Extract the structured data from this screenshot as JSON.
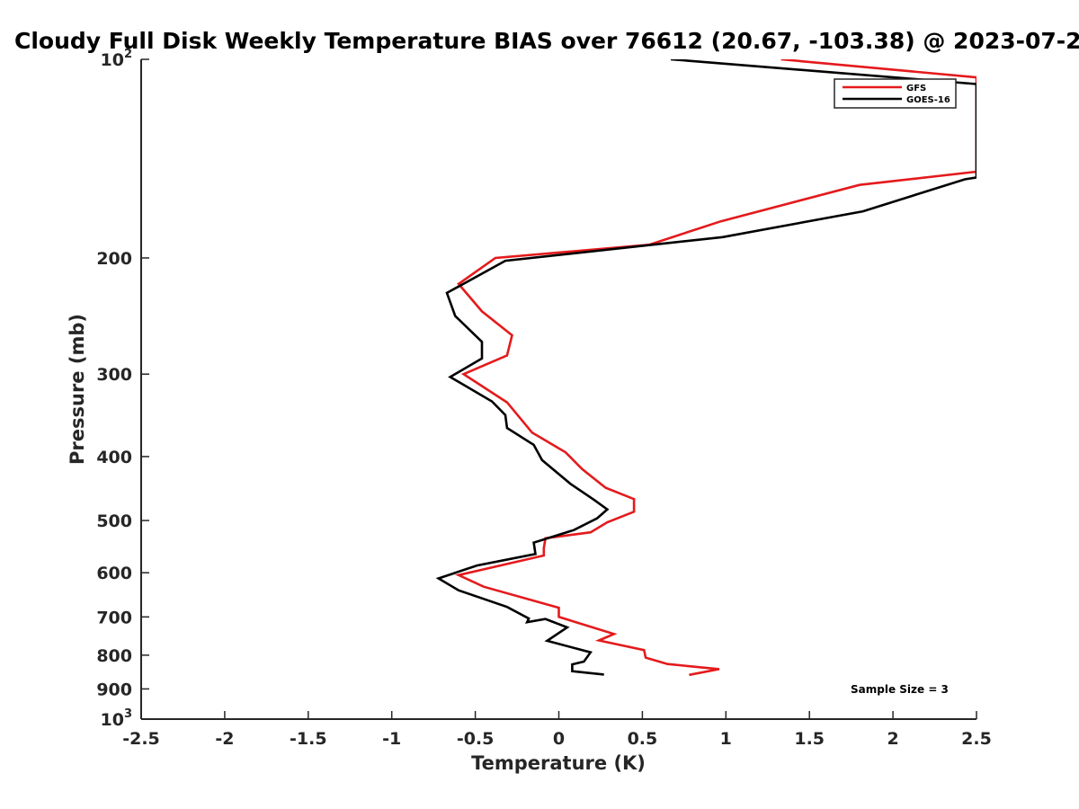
{
  "chart_data": {
    "type": "line",
    "title": "Cloudy Full Disk Weekly Temperature BIAS over 76612 (20.67, -103.38) @ 2023-07-2",
    "xlabel": "Temperature (K)",
    "ylabel": "Pressure (mb)",
    "xlim": [
      -2.5,
      2.5
    ],
    "ylim": [
      1000,
      100
    ],
    "y_scale": "log",
    "y_reversed": true,
    "grid": false,
    "legend_position": "top-right",
    "x_ticks": [
      "-2.5",
      "-2",
      "-1.5",
      "-1",
      "-0.5",
      "0",
      "0.5",
      "1",
      "1.5",
      "2",
      "2.5"
    ],
    "y_ticks": [
      {
        "base": "10",
        "exp": "2"
      },
      {
        "base": "200",
        "exp": ""
      },
      {
        "base": "300",
        "exp": ""
      },
      {
        "base": "400",
        "exp": ""
      },
      {
        "base": "500",
        "exp": ""
      },
      {
        "base": "600",
        "exp": ""
      },
      {
        "base": "700",
        "exp": ""
      },
      {
        "base": "800",
        "exp": ""
      },
      {
        "base": "900",
        "exp": ""
      },
      {
        "base": "10",
        "exp": "3"
      }
    ],
    "annotation": "Sample Size = 3",
    "series": [
      {
        "name": "GFS",
        "color": "#e41a1c",
        "points": [
          [
            1.33,
            100
          ],
          [
            2.5,
            106.5
          ],
          [
            2.5,
            148
          ],
          [
            1.8,
            155
          ],
          [
            0.97,
            176
          ],
          [
            0.54,
            191
          ],
          [
            -0.38,
            200
          ],
          [
            -0.6,
            219
          ],
          [
            -0.46,
            241
          ],
          [
            -0.28,
            262
          ],
          [
            -0.31,
            281
          ],
          [
            -0.57,
            300
          ],
          [
            -0.31,
            331
          ],
          [
            -0.16,
            368
          ],
          [
            0.04,
            394
          ],
          [
            0.14,
            418
          ],
          [
            0.28,
            446
          ],
          [
            0.45,
            464
          ],
          [
            0.45,
            485
          ],
          [
            0.29,
            503
          ],
          [
            0.19,
            521
          ],
          [
            -0.08,
            532
          ],
          [
            -0.09,
            551
          ],
          [
            -0.09,
            565
          ],
          [
            -0.6,
            605
          ],
          [
            -0.45,
            630
          ],
          [
            0.0,
            678
          ],
          [
            0.0,
            700
          ],
          [
            0.33,
            743
          ],
          [
            0.24,
            760
          ],
          [
            0.51,
            786
          ],
          [
            0.52,
            807
          ],
          [
            0.65,
            825
          ],
          [
            0.96,
            840
          ],
          [
            0.78,
            857
          ]
        ]
      },
      {
        "name": "GOES-16",
        "color": "#000000",
        "points": [
          [
            0.67,
            100
          ],
          [
            2.5,
            109
          ],
          [
            2.5,
            151
          ],
          [
            2.43,
            152
          ],
          [
            1.82,
            170
          ],
          [
            0.98,
            186
          ],
          [
            -0.32,
            202
          ],
          [
            -0.67,
            226
          ],
          [
            -0.62,
            245
          ],
          [
            -0.46,
            268
          ],
          [
            -0.46,
            284
          ],
          [
            -0.65,
            303
          ],
          [
            -0.4,
            330
          ],
          [
            -0.32,
            346
          ],
          [
            -0.31,
            362
          ],
          [
            -0.15,
            384
          ],
          [
            -0.1,
            405
          ],
          [
            0.07,
            440
          ],
          [
            0.21,
            465
          ],
          [
            0.29,
            481
          ],
          [
            0.23,
            496
          ],
          [
            0.09,
            517
          ],
          [
            -0.15,
            540
          ],
          [
            -0.14,
            562
          ],
          [
            -0.49,
            585
          ],
          [
            -0.72,
            612
          ],
          [
            -0.6,
            638
          ],
          [
            -0.31,
            676
          ],
          [
            -0.18,
            704
          ],
          [
            -0.19,
            713
          ],
          [
            -0.08,
            705
          ],
          [
            0.05,
            726
          ],
          [
            -0.07,
            761
          ],
          [
            0.19,
            792
          ],
          [
            0.15,
            818
          ],
          [
            0.08,
            826
          ],
          [
            0.08,
            846
          ],
          [
            0.27,
            856
          ]
        ]
      }
    ]
  }
}
